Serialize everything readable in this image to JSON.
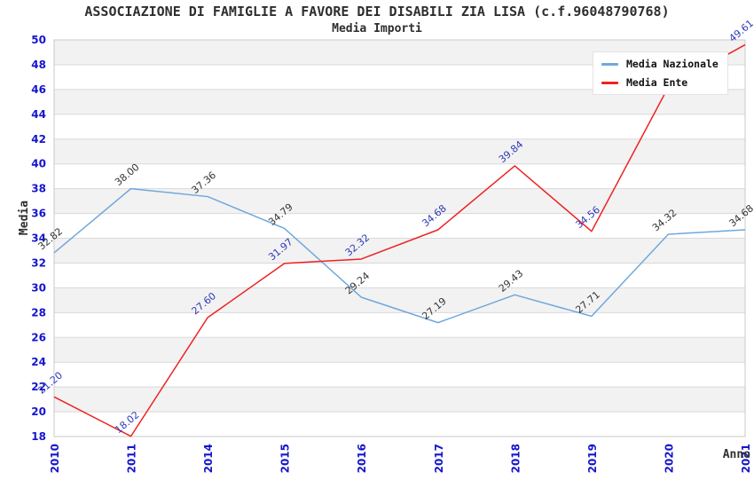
{
  "header": {
    "title": "ASSOCIAZIONE DI FAMIGLIE A FAVORE DEI DISABILI ZIA LISA (c.f.96048790768)",
    "subtitle": "Media Importi"
  },
  "legend": {
    "items": [
      {
        "label": "Media Nazionale",
        "color": "#6fa8dc"
      },
      {
        "label": "Media Ente",
        "color": "#ee2222"
      }
    ]
  },
  "chart_data": {
    "type": "line",
    "title": "ASSOCIAZIONE DI FAMIGLIE A FAVORE DEI DISABILI ZIA LISA (c.f.96048790768)",
    "subtitle": "Media Importi",
    "xlabel": "Anno",
    "ylabel": "Media",
    "categories": [
      "2010",
      "2011",
      "2014",
      "2015",
      "2016",
      "2017",
      "2018",
      "2019",
      "2020",
      "2021"
    ],
    "series": [
      {
        "name": "Media Nazionale",
        "color": "#6fa8dc",
        "label_color": "#333333",
        "values": [
          32.82,
          38.0,
          37.36,
          34.79,
          29.24,
          27.19,
          29.43,
          27.71,
          34.32,
          34.68
        ],
        "labels": [
          "32.82",
          "38.00",
          "37.36",
          "34.79",
          "29.24",
          "27.19",
          "29.43",
          "27.71",
          "34.32",
          "34.68"
        ]
      },
      {
        "name": "Media Ente",
        "color": "#ee2222",
        "label_color": "#2c38b8",
        "values": [
          21.2,
          18.02,
          27.6,
          31.97,
          32.32,
          34.68,
          39.84,
          34.56,
          46.2,
          49.61
        ],
        "labels": [
          "21.20",
          "18.02",
          "27.60",
          "31.97",
          "32.32",
          "34.68",
          "39.84",
          "34.56",
          "",
          "49.61"
        ]
      }
    ],
    "ylim": [
      18,
      50
    ],
    "ytick_step": 2,
    "grid": true,
    "band_fill": "#f2f2f2",
    "grid_color": "#d9d9d9",
    "border_color": "#c9c9c9",
    "tick_color": "#1515cd",
    "legend_position": "top-right"
  }
}
